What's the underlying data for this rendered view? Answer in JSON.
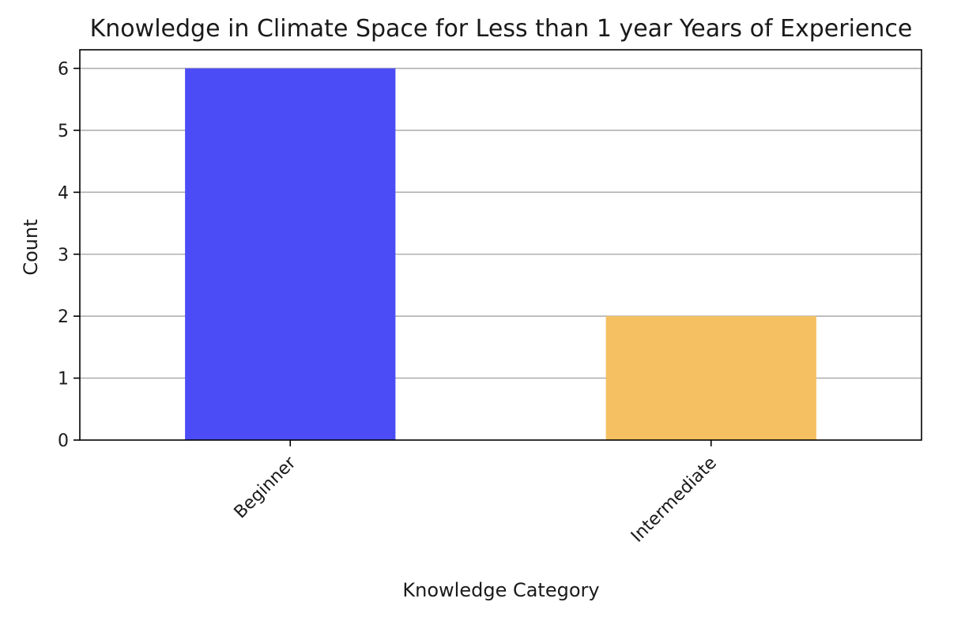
{
  "chart_data": {
    "type": "bar",
    "title": "Knowledge in Climate Space for Less than 1 year Years of Experience",
    "xlabel": "Knowledge Category",
    "ylabel": "Count",
    "categories": [
      "Beginner",
      "Intermediate"
    ],
    "values": [
      6,
      2
    ],
    "colors": [
      "#4b4cf6",
      "#f5c061"
    ],
    "ylim": [
      0,
      6.3
    ],
    "yticks": [
      0,
      1,
      2,
      3,
      4,
      5,
      6
    ],
    "grid": "y-axis only",
    "legend": "none",
    "xtick_rotation": "45 degrees"
  }
}
